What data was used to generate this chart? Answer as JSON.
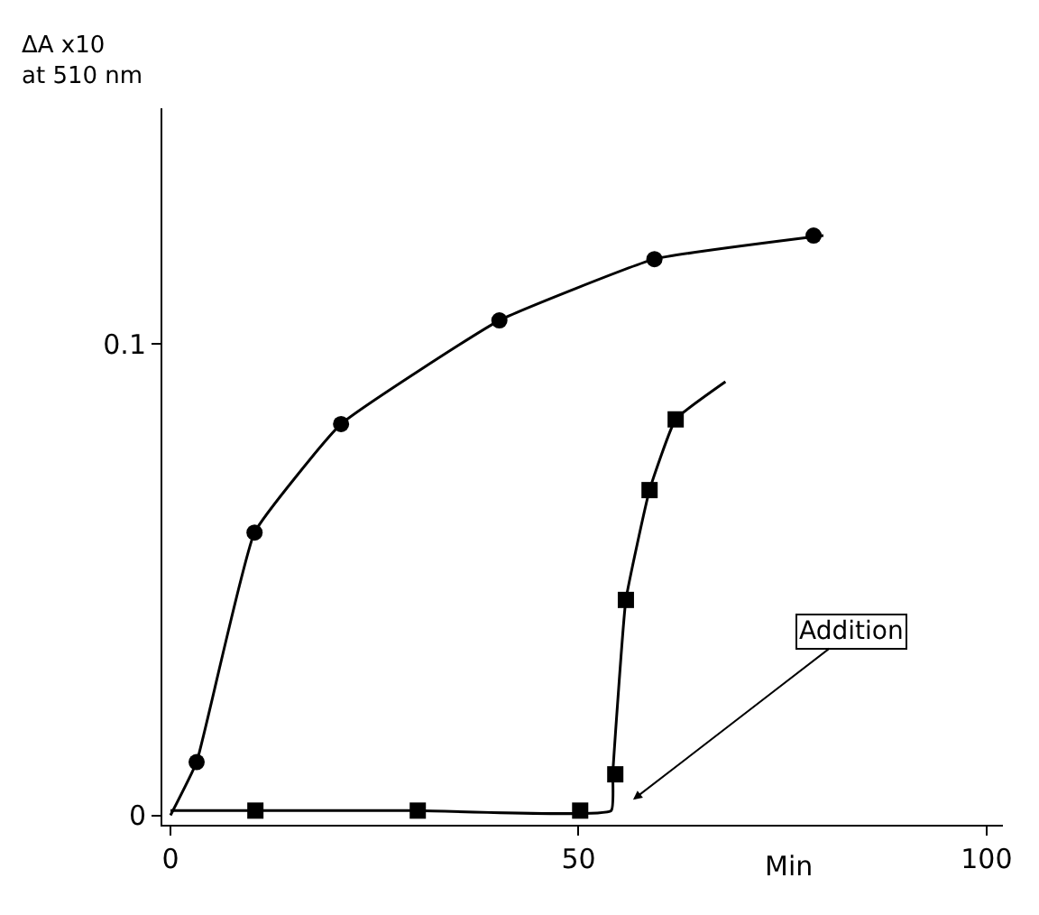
{
  "chart_data": {
    "type": "scatter",
    "ylabel": "ΔA x10\nat 510 nm",
    "xlabel": "Min",
    "xlim": [
      -1,
      102
    ],
    "ylim": [
      -0.002,
      0.15
    ],
    "xticks": [
      0,
      50,
      100
    ],
    "yticks": [
      0,
      0.1
    ],
    "legend": false,
    "series": [
      {
        "type": "line",
        "marker": "none",
        "color": "#000000",
        "x": [
          0,
          3.2,
          10.3,
          20.9,
          40.3,
          59.3,
          80
        ],
        "values": [
          0,
          0.0113,
          0.06,
          0.083,
          0.105,
          0.118,
          0.123
        ]
      },
      {
        "type": "line",
        "marker": "none",
        "color": "#000000",
        "x": [
          0,
          30,
          54,
          54.2,
          55.8,
          58.7,
          61.9,
          68
        ],
        "values": [
          0.001,
          0.001,
          0.001,
          0.009,
          0.0457,
          0.069,
          0.084,
          0.092
        ]
      },
      {
        "marker": "circle",
        "color": "#000000",
        "x": [
          3.2,
          10.3,
          20.9,
          40.3,
          59.3,
          78.8
        ],
        "values": [
          0.0113,
          0.06,
          0.083,
          0.105,
          0.118,
          0.123
        ]
      },
      {
        "marker": "square",
        "color": "#000000",
        "x": [
          10.4,
          30.3,
          50.2,
          54.5,
          55.8,
          58.7,
          61.9
        ],
        "values": [
          0.001,
          0.001,
          0.001,
          0.0087,
          0.0457,
          0.069,
          0.084
        ]
      }
    ],
    "annotations": [
      "Addition"
    ]
  }
}
